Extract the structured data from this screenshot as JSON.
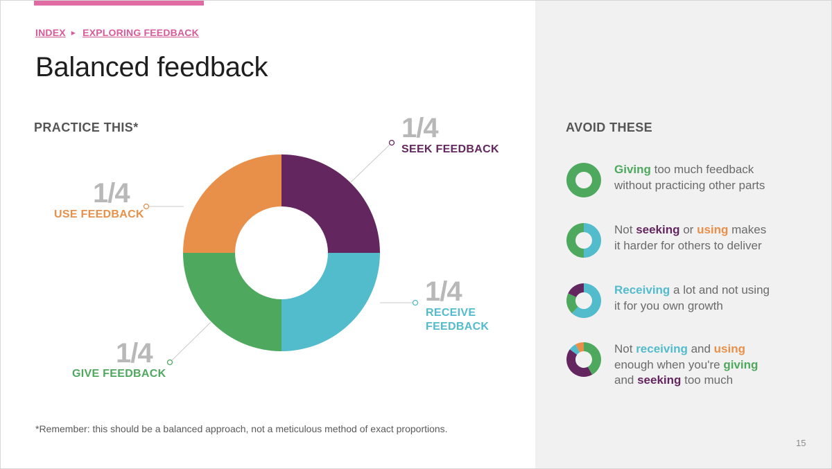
{
  "colors": {
    "seek": "#63265f",
    "receive": "#52bbcc",
    "give": "#4ea85e",
    "use": "#e8904a",
    "accent": "#e06aa2"
  },
  "breadcrumb": {
    "index_label": "INDEX",
    "current_label": "EXPLORING FEEDBACK"
  },
  "title": "Balanced feedback",
  "practice": {
    "heading": "PRACTICE THIS*",
    "segments": [
      {
        "key": "seek",
        "fraction": "1/4",
        "label_lines": [
          "SEEK FEEDBACK"
        ],
        "value": 0.25
      },
      {
        "key": "receive",
        "fraction": "1/4",
        "label_lines": [
          "RECEIVE",
          "FEEDBACK"
        ],
        "value": 0.25
      },
      {
        "key": "give",
        "fraction": "1/4",
        "label_lines": [
          "GIVE FEEDBACK"
        ],
        "value": 0.25
      },
      {
        "key": "use",
        "fraction": "1/4",
        "label_lines": [
          "USE FEEDBACK"
        ],
        "value": 0.25
      }
    ]
  },
  "footnote": "*Remember: this should be a balanced approach, not a meticulous method of exact proportions.",
  "avoid": {
    "heading": "AVOID THESE",
    "items": [
      {
        "donut": [
          {
            "key": "give",
            "value": 1.0
          }
        ],
        "line1": [
          {
            "t": "Giving",
            "c": "give"
          },
          {
            "t": " too much feedback"
          }
        ],
        "line2": [
          {
            "t": "without practicing other parts"
          }
        ]
      },
      {
        "donut": [
          {
            "key": "receive",
            "value": 0.5
          },
          {
            "key": "give",
            "value": 0.5
          }
        ],
        "line1": [
          {
            "t": "Not "
          },
          {
            "t": "seeking",
            "c": "seek"
          },
          {
            "t": " or "
          },
          {
            "t": "using",
            "c": "use"
          },
          {
            "t": " makes"
          }
        ],
        "line2": [
          {
            "t": "it harder for others to deliver"
          }
        ]
      },
      {
        "donut": [
          {
            "key": "receive",
            "value": 0.62
          },
          {
            "key": "give",
            "value": 0.2
          },
          {
            "key": "seek",
            "value": 0.18
          }
        ],
        "line1": [
          {
            "t": "Receiving",
            "c": "receive"
          },
          {
            "t": " a lot and not using"
          }
        ],
        "line2": [
          {
            "t": "it for you own growth"
          }
        ]
      },
      {
        "donut": [
          {
            "key": "give",
            "value": 0.42
          },
          {
            "key": "seek",
            "value": 0.43
          },
          {
            "key": "receive",
            "value": 0.07
          },
          {
            "key": "use",
            "value": 0.08
          }
        ],
        "line1": [
          {
            "t": "Not "
          },
          {
            "t": "receiving",
            "c": "receive"
          },
          {
            "t": " and "
          },
          {
            "t": "using",
            "c": "use"
          }
        ],
        "line2": [
          {
            "t": "enough when you're "
          },
          {
            "t": "giving",
            "c": "give"
          }
        ],
        "line3": [
          {
            "t": "and "
          },
          {
            "t": "seeking",
            "c": "seek"
          },
          {
            "t": " too much"
          }
        ]
      }
    ]
  },
  "page_number": "15"
}
